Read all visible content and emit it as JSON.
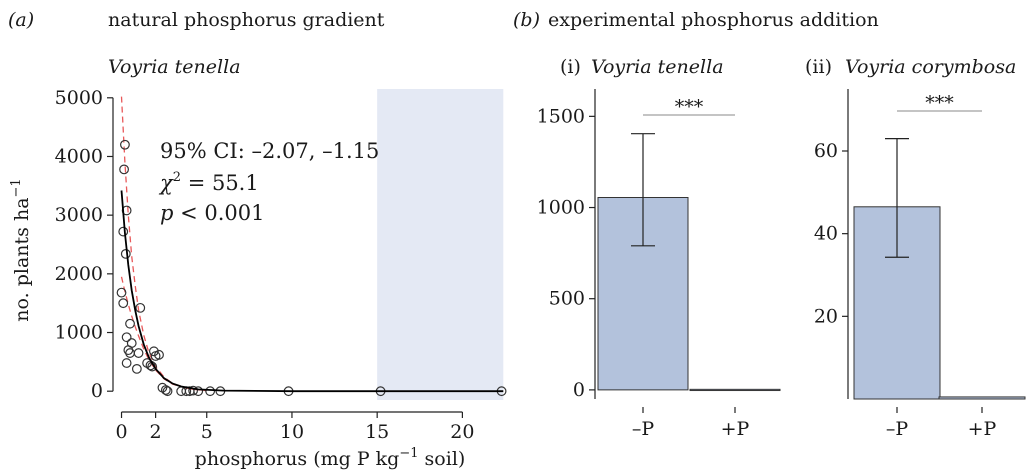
{
  "figure": {
    "panel_a_tag": "(a)",
    "panel_a_title": "natural phosphorus gradient",
    "panel_b_tag": "(b)",
    "panel_b_title": "experimental phosphorus addition"
  },
  "colors": {
    "bar_fill": "#b3c2dc",
    "shade": "#e4e9f4",
    "fit_line": "#000000",
    "ci_line": "#e8595a",
    "sig_line": "#888888"
  },
  "chart_data": [
    {
      "type": "scatter",
      "subtitle": "Voyria tenella",
      "xlabel_main": "phosphorus (mg P kg",
      "xlabel_sup": "−1",
      "xlabel_tail": " soil)",
      "ylabel_main": "no. plants ha",
      "ylabel_sup": "−1",
      "xlim": [
        -0.5,
        22.5
      ],
      "ylim": [
        -150,
        5150
      ],
      "x_ticks": [
        0,
        2,
        5,
        10,
        15,
        20
      ],
      "y_ticks": [
        0,
        1000,
        2000,
        3000,
        4000,
        5000
      ],
      "shaded_region": [
        15,
        22.4
      ],
      "stats": {
        "ci_prefix": "95% CI: ",
        "ci_value": "–2.07, –1.15",
        "chi_symbol": "χ",
        "chi_sup": "2",
        "chi_rest": " = 55.1",
        "p_symbol": "p",
        "p_rest": " < 0.001"
      },
      "points": [
        [
          0.2,
          4200
        ],
        [
          0.15,
          3780
        ],
        [
          0.3,
          3080
        ],
        [
          0.1,
          2720
        ],
        [
          0.25,
          2340
        ],
        [
          0.0,
          1680
        ],
        [
          0.1,
          1500
        ],
        [
          0.5,
          1150
        ],
        [
          0.3,
          920
        ],
        [
          0.6,
          820
        ],
        [
          0.4,
          700
        ],
        [
          0.5,
          650
        ],
        [
          1.0,
          650
        ],
        [
          1.1,
          1420
        ],
        [
          0.3,
          480
        ],
        [
          0.9,
          380
        ],
        [
          1.5,
          480
        ],
        [
          1.7,
          440
        ],
        [
          1.8,
          420
        ],
        [
          1.9,
          680
        ],
        [
          2.0,
          600
        ],
        [
          2.2,
          620
        ],
        [
          2.4,
          60
        ],
        [
          2.6,
          20
        ],
        [
          2.7,
          0
        ],
        [
          3.5,
          0
        ],
        [
          3.8,
          0
        ],
        [
          4.0,
          0
        ],
        [
          4.2,
          10
        ],
        [
          4.5,
          0
        ],
        [
          5.2,
          0
        ],
        [
          5.8,
          0
        ],
        [
          9.8,
          0
        ],
        [
          15.2,
          0
        ],
        [
          22.3,
          0
        ]
      ],
      "fit_line": [
        [
          0.0,
          3420
        ],
        [
          0.2,
          2700
        ],
        [
          0.4,
          2150
        ],
        [
          0.6,
          1720
        ],
        [
          0.8,
          1380
        ],
        [
          1.0,
          1110
        ],
        [
          1.3,
          800
        ],
        [
          1.6,
          580
        ],
        [
          2.0,
          380
        ],
        [
          2.5,
          220
        ],
        [
          3.0,
          130
        ],
        [
          3.5,
          80
        ],
        [
          4.5,
          30
        ],
        [
          6,
          10
        ],
        [
          10,
          0
        ],
        [
          22.4,
          0
        ]
      ],
      "ci_upper": [
        [
          0.0,
          5020
        ],
        [
          0.2,
          3900
        ],
        [
          0.4,
          3000
        ],
        [
          0.6,
          2300
        ],
        [
          0.8,
          1800
        ],
        [
          1.0,
          1380
        ],
        [
          1.3,
          960
        ],
        [
          1.6,
          660
        ],
        [
          2.0,
          420
        ],
        [
          2.5,
          240
        ],
        [
          3.0,
          130
        ],
        [
          4.0,
          40
        ],
        [
          5.0,
          10
        ]
      ],
      "ci_lower": [
        [
          0.0,
          1950
        ],
        [
          0.2,
          1700
        ],
        [
          0.4,
          1480
        ],
        [
          0.6,
          1280
        ],
        [
          0.8,
          1100
        ],
        [
          1.0,
          940
        ],
        [
          1.3,
          720
        ],
        [
          1.6,
          540
        ],
        [
          2.0,
          360
        ],
        [
          2.5,
          210
        ],
        [
          3.0,
          120
        ],
        [
          4.0,
          40
        ],
        [
          5.0,
          10
        ]
      ]
    },
    {
      "type": "bar",
      "panel_label": "(i)",
      "subtitle": "Voyria tenella",
      "categories": [
        "–P",
        "+P"
      ],
      "values": [
        1055,
        3
      ],
      "error_high": [
        1405,
        3
      ],
      "error_low": [
        790,
        3
      ],
      "ylim": [
        -50,
        1650
      ],
      "y_ticks": [
        0,
        500,
        1000,
        1500
      ],
      "significance": "***"
    },
    {
      "type": "bar",
      "panel_label": "(ii)",
      "subtitle": "Voyria corymbosa",
      "categories": [
        "–P",
        "+P"
      ],
      "values": [
        46.5,
        0.5
      ],
      "error_high": [
        63,
        0.5
      ],
      "error_low": [
        34.3,
        0.5
      ],
      "ylim": [
        0,
        75
      ],
      "y_ticks": [
        20,
        40,
        60
      ],
      "significance": "***"
    }
  ]
}
